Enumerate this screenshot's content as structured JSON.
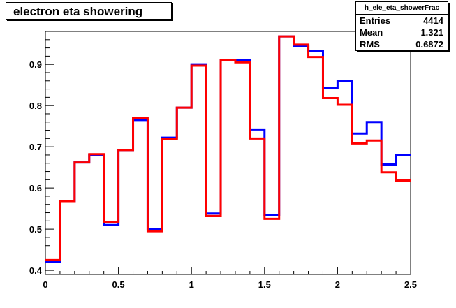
{
  "chart_data": {
    "type": "line",
    "title": "electron eta showering",
    "xlabel": "",
    "ylabel": "",
    "xlim": [
      0,
      2.5
    ],
    "ylim": [
      0.39,
      0.98
    ],
    "x_ticks": [
      "0",
      "0.5",
      "1",
      "1.5",
      "2",
      "2.5"
    ],
    "y_ticks": [
      "0.4",
      "0.5",
      "0.6",
      "0.7",
      "0.8",
      "0.9"
    ],
    "bin_edges": [
      0,
      0.1,
      0.2,
      0.3,
      0.4,
      0.5,
      0.6,
      0.7,
      0.8,
      0.9,
      1.0,
      1.1,
      1.2,
      1.3,
      1.4,
      1.5,
      1.6,
      1.7,
      1.8,
      1.9,
      2.0,
      2.1,
      2.2,
      2.3,
      2.4,
      2.5
    ],
    "series": [
      {
        "color": "#0000ff",
        "values": [
          0.42,
          0.568,
          0.662,
          0.68,
          0.51,
          0.692,
          0.765,
          0.5,
          0.722,
          0.795,
          0.9,
          0.538,
          0.91,
          0.91,
          0.742,
          0.535,
          0.968,
          0.945,
          0.933,
          0.842,
          0.86,
          0.732,
          0.76,
          0.657,
          0.68
        ]
      },
      {
        "color": "#ff0000",
        "values": [
          0.425,
          0.568,
          0.662,
          0.682,
          0.518,
          0.692,
          0.77,
          0.495,
          0.718,
          0.795,
          0.897,
          0.532,
          0.91,
          0.905,
          0.72,
          0.525,
          0.968,
          0.948,
          0.918,
          0.818,
          0.802,
          0.708,
          0.715,
          0.638,
          0.618
        ]
      }
    ]
  },
  "stats": {
    "name": "h_ele_eta_showerFrac",
    "entries_label": "Entries",
    "entries": "4414",
    "mean_label": "Mean",
    "mean": "1.321",
    "rms_label": "RMS",
    "rms": "0.6872"
  }
}
